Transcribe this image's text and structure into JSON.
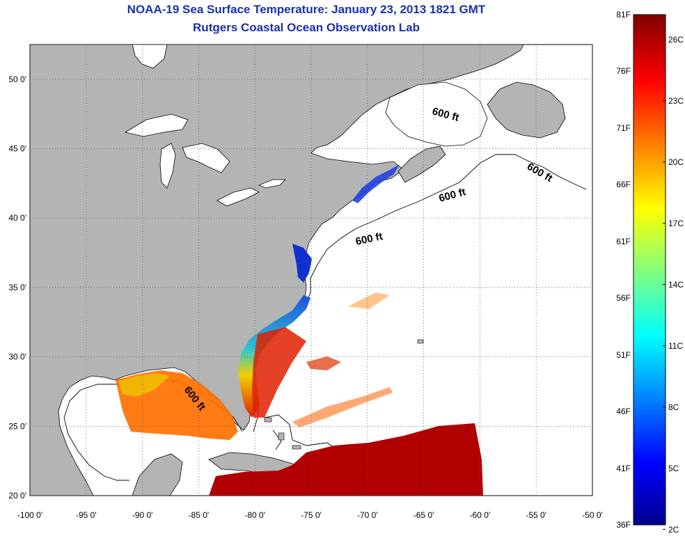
{
  "title": {
    "line1": "NOAA-19 Sea Surface Temperature:  January 23, 2013 1821 GMT",
    "line2": "Rutgers Coastal Ocean Observation Lab"
  },
  "map": {
    "lon_range": [
      -100,
      -50
    ],
    "lat_range": [
      20,
      52.5
    ],
    "lon_ticks": [
      "-100 0'",
      "-95 0'",
      "-90 0'",
      "-85 0'",
      "-80 0'",
      "-75 0'",
      "-70 0'",
      "-65 0'",
      "-60 0'",
      "-55 0'",
      "-50 0'"
    ],
    "lat_ticks": [
      "50 0'",
      "45 0'",
      "40 0'",
      "35 0'",
      "30 0'",
      "25 0'",
      "20 0'"
    ],
    "contour_label": "600 ft",
    "colors": {
      "land": "#b4b4b4",
      "ocean": "#ffffff",
      "grid": "#555555"
    }
  },
  "colorbar": {
    "fahrenheit": [
      "81F",
      "76F",
      "71F",
      "66F",
      "61F",
      "56F",
      "51F",
      "46F",
      "41F",
      "36F"
    ],
    "celsius": [
      "26C",
      "23C",
      "20C",
      "17C",
      "14C",
      "11C",
      "8C",
      "5C",
      "2C"
    ]
  }
}
